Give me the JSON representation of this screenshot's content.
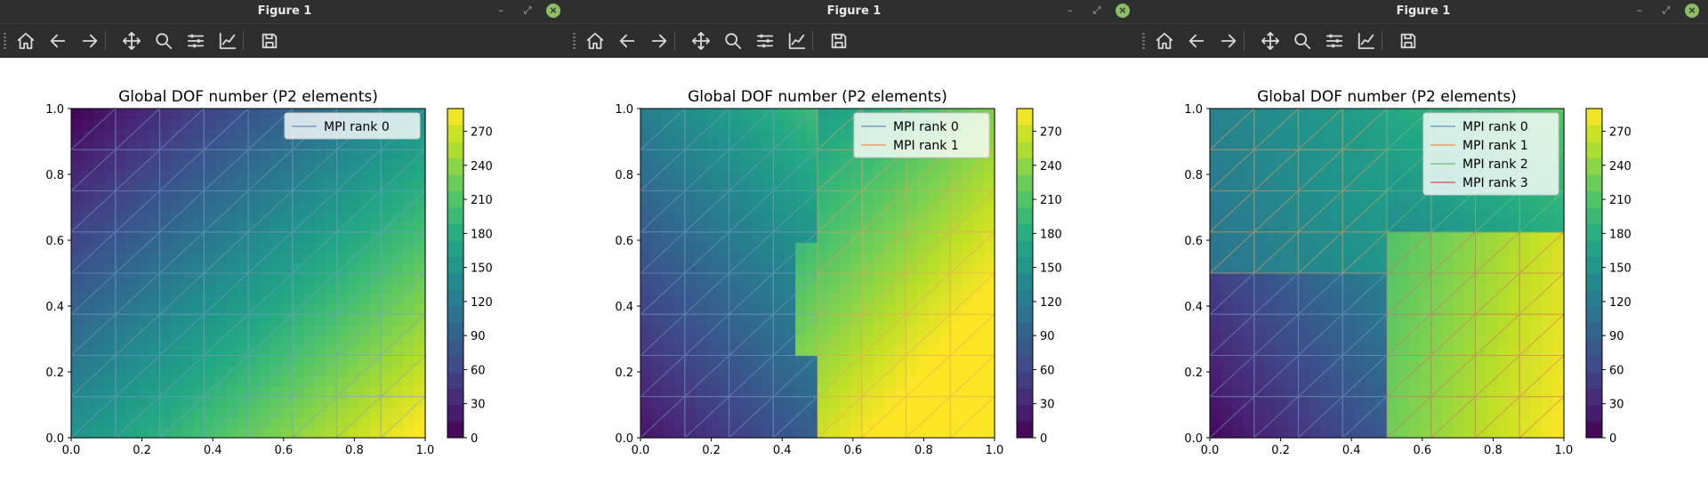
{
  "windows": [
    {
      "title": "Figure 1",
      "plot_title": "Global DOF number (P2 elements)",
      "legend": [
        "MPI rank 0"
      ],
      "legend_colors": [
        "#7a9fc9"
      ]
    },
    {
      "title": "Figure 1",
      "plot_title": "Global DOF number (P2 elements)",
      "legend": [
        "MPI rank 0",
        "MPI rank 1"
      ],
      "legend_colors": [
        "#7a9fc9",
        "#e8a060"
      ]
    },
    {
      "title": "Figure 1",
      "plot_title": "Global DOF number (P2 elements)",
      "legend": [
        "MPI rank 0",
        "MPI rank 1",
        "MPI rank 2",
        "MPI rank 3"
      ],
      "legend_colors": [
        "#7a9fc9",
        "#e8a060",
        "#7cc47c",
        "#d46a6a"
      ]
    }
  ],
  "window_controls": {
    "minimize": "–",
    "restore": "⤢",
    "close": "×"
  },
  "toolbar_icons": [
    "home-icon",
    "back-icon",
    "forward-icon",
    "pan-icon",
    "zoom-icon",
    "subplots-icon",
    "edit-axes-icon",
    "save-icon"
  ],
  "chart_data": [
    {
      "type": "heatmap",
      "title": "Global DOF number (P2 elements)",
      "xlim": [
        0.0,
        1.0
      ],
      "ylim": [
        0.0,
        1.0
      ],
      "xticks": [
        "0.0",
        "0.2",
        "0.4",
        "0.6",
        "0.8",
        "1.0"
      ],
      "yticks": [
        "0.0",
        "0.2",
        "0.4",
        "0.6",
        "0.8",
        "1.0"
      ],
      "colorbar_ticks": [
        "0",
        "30",
        "60",
        "90",
        "120",
        "150",
        "180",
        "210",
        "240",
        "270"
      ],
      "colormap": "viridis",
      "legend": [
        "MPI rank 0"
      ],
      "legend_placement": "upper right"
    },
    {
      "type": "heatmap",
      "title": "Global DOF number (P2 elements)",
      "xlim": [
        0.0,
        1.0
      ],
      "ylim": [
        0.0,
        1.0
      ],
      "xticks": [
        "0.0",
        "0.2",
        "0.4",
        "0.6",
        "0.8",
        "1.0"
      ],
      "yticks": [
        "0.0",
        "0.2",
        "0.4",
        "0.6",
        "0.8",
        "1.0"
      ],
      "colorbar_ticks": [
        "0",
        "30",
        "60",
        "90",
        "120",
        "150",
        "180",
        "210",
        "240",
        "270"
      ],
      "colormap": "viridis",
      "legend": [
        "MPI rank 0",
        "MPI rank 1"
      ],
      "legend_placement": "upper right"
    },
    {
      "type": "heatmap",
      "title": "Global DOF number (P2 elements)",
      "xlim": [
        0.0,
        1.0
      ],
      "ylim": [
        0.0,
        1.0
      ],
      "xticks": [
        "0.0",
        "0.2",
        "0.4",
        "0.6",
        "0.8",
        "1.0"
      ],
      "yticks": [
        "0.0",
        "0.2",
        "0.4",
        "0.6",
        "0.8",
        "1.0"
      ],
      "colorbar_ticks": [
        "0",
        "30",
        "60",
        "90",
        "120",
        "150",
        "180",
        "210",
        "240",
        "270"
      ],
      "colormap": "viridis",
      "legend": [
        "MPI rank 0",
        "MPI rank 1",
        "MPI rank 2",
        "MPI rank 3"
      ],
      "legend_placement": "upper right"
    }
  ]
}
